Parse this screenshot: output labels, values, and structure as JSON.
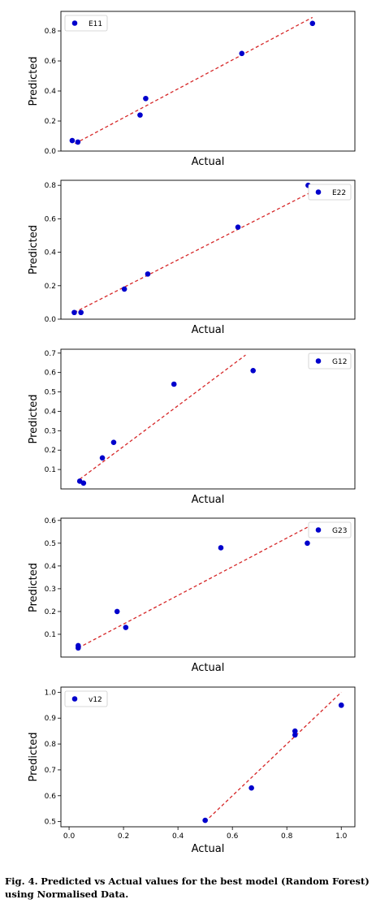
{
  "caption": {
    "label": "Fig. 4.",
    "text": "Predicted vs Actual values for the best model (Random Forest) using Normalised Data."
  },
  "colors": {
    "points": "#0000cc",
    "fit_line": "#d62728"
  },
  "chart_data": [
    {
      "type": "scatter",
      "legend": "E11",
      "legend_position": "top-left",
      "xlabel": "Actual",
      "ylabel": "Predicted",
      "xlim": [
        0.0,
        1.04
      ],
      "ylim": [
        0.0,
        0.93
      ],
      "show_xticks": false,
      "yticks": [
        "0.0",
        "0.2",
        "0.4",
        "0.6",
        "0.8"
      ],
      "x": [
        0.04,
        0.06,
        0.28,
        0.3,
        0.64,
        0.89
      ],
      "y": [
        0.07,
        0.06,
        0.24,
        0.35,
        0.65,
        0.85
      ],
      "fit_line": {
        "x": [
          0.05,
          0.89
        ],
        "y": [
          0.05,
          0.89
        ]
      }
    },
    {
      "type": "scatter",
      "legend": "E22",
      "legend_position": "top-right",
      "xlabel": "Actual",
      "ylabel": "Predicted",
      "xlim": [
        0.0,
        0.88
      ],
      "ylim": [
        0.0,
        0.83
      ],
      "show_xticks": false,
      "yticks": [
        "0.0",
        "0.2",
        "0.4",
        "0.6",
        "0.8"
      ],
      "x": [
        0.04,
        0.06,
        0.19,
        0.26,
        0.53,
        0.74
      ],
      "y": [
        0.04,
        0.04,
        0.18,
        0.27,
        0.55,
        0.8
      ],
      "fit_line": {
        "x": [
          0.04,
          0.75
        ],
        "y": [
          0.04,
          0.76
        ]
      }
    },
    {
      "type": "scatter",
      "legend": "G12",
      "legend_position": "top-right",
      "xlabel": "Actual",
      "ylabel": "Predicted",
      "xlim": [
        0.0,
        0.78
      ],
      "ylim": [
        0.0,
        0.72
      ],
      "show_xticks": false,
      "yticks": [
        "0.1",
        "0.2",
        "0.3",
        "0.4",
        "0.5",
        "0.6",
        "0.7"
      ],
      "x": [
        0.05,
        0.06,
        0.11,
        0.14,
        0.3,
        0.51
      ],
      "y": [
        0.04,
        0.03,
        0.16,
        0.24,
        0.54,
        0.61
      ],
      "fit_line": {
        "x": [
          0.05,
          0.49
        ],
        "y": [
          0.05,
          0.69
        ]
      }
    },
    {
      "type": "scatter",
      "legend": "G23",
      "legend_position": "top-right",
      "xlabel": "Actual",
      "ylabel": "Predicted",
      "xlim": [
        0.0,
        0.68
      ],
      "ylim": [
        0.0,
        0.61
      ],
      "show_xticks": false,
      "yticks": [
        "0.1",
        "0.2",
        "0.3",
        "0.4",
        "0.5",
        "0.6"
      ],
      "x": [
        0.04,
        0.04,
        0.13,
        0.15,
        0.37,
        0.57
      ],
      "y": [
        0.05,
        0.04,
        0.2,
        0.13,
        0.48,
        0.5
      ],
      "fit_line": {
        "x": [
          0.04,
          0.58
        ],
        "y": [
          0.04,
          0.58
        ]
      }
    },
    {
      "type": "scatter",
      "legend": "v12",
      "legend_position": "top-left",
      "xlabel": "Actual",
      "ylabel": "Predicted",
      "xlim": [
        -0.03,
        1.05
      ],
      "ylim": [
        0.48,
        1.02
      ],
      "show_xticks": true,
      "xticks": [
        "0.0",
        "0.2",
        "0.4",
        "0.6",
        "0.8",
        "1.0"
      ],
      "yticks": [
        "0.5",
        "0.6",
        "0.7",
        "0.8",
        "0.9",
        "1.0"
      ],
      "x": [
        0.5,
        0.67,
        0.83,
        0.83,
        1.0,
        1.0
      ],
      "y": [
        0.505,
        0.63,
        0.835,
        0.85,
        0.95,
        0.95
      ],
      "fit_line": {
        "x": [
          0.5,
          1.0
        ],
        "y": [
          0.5,
          1.0
        ]
      }
    }
  ]
}
